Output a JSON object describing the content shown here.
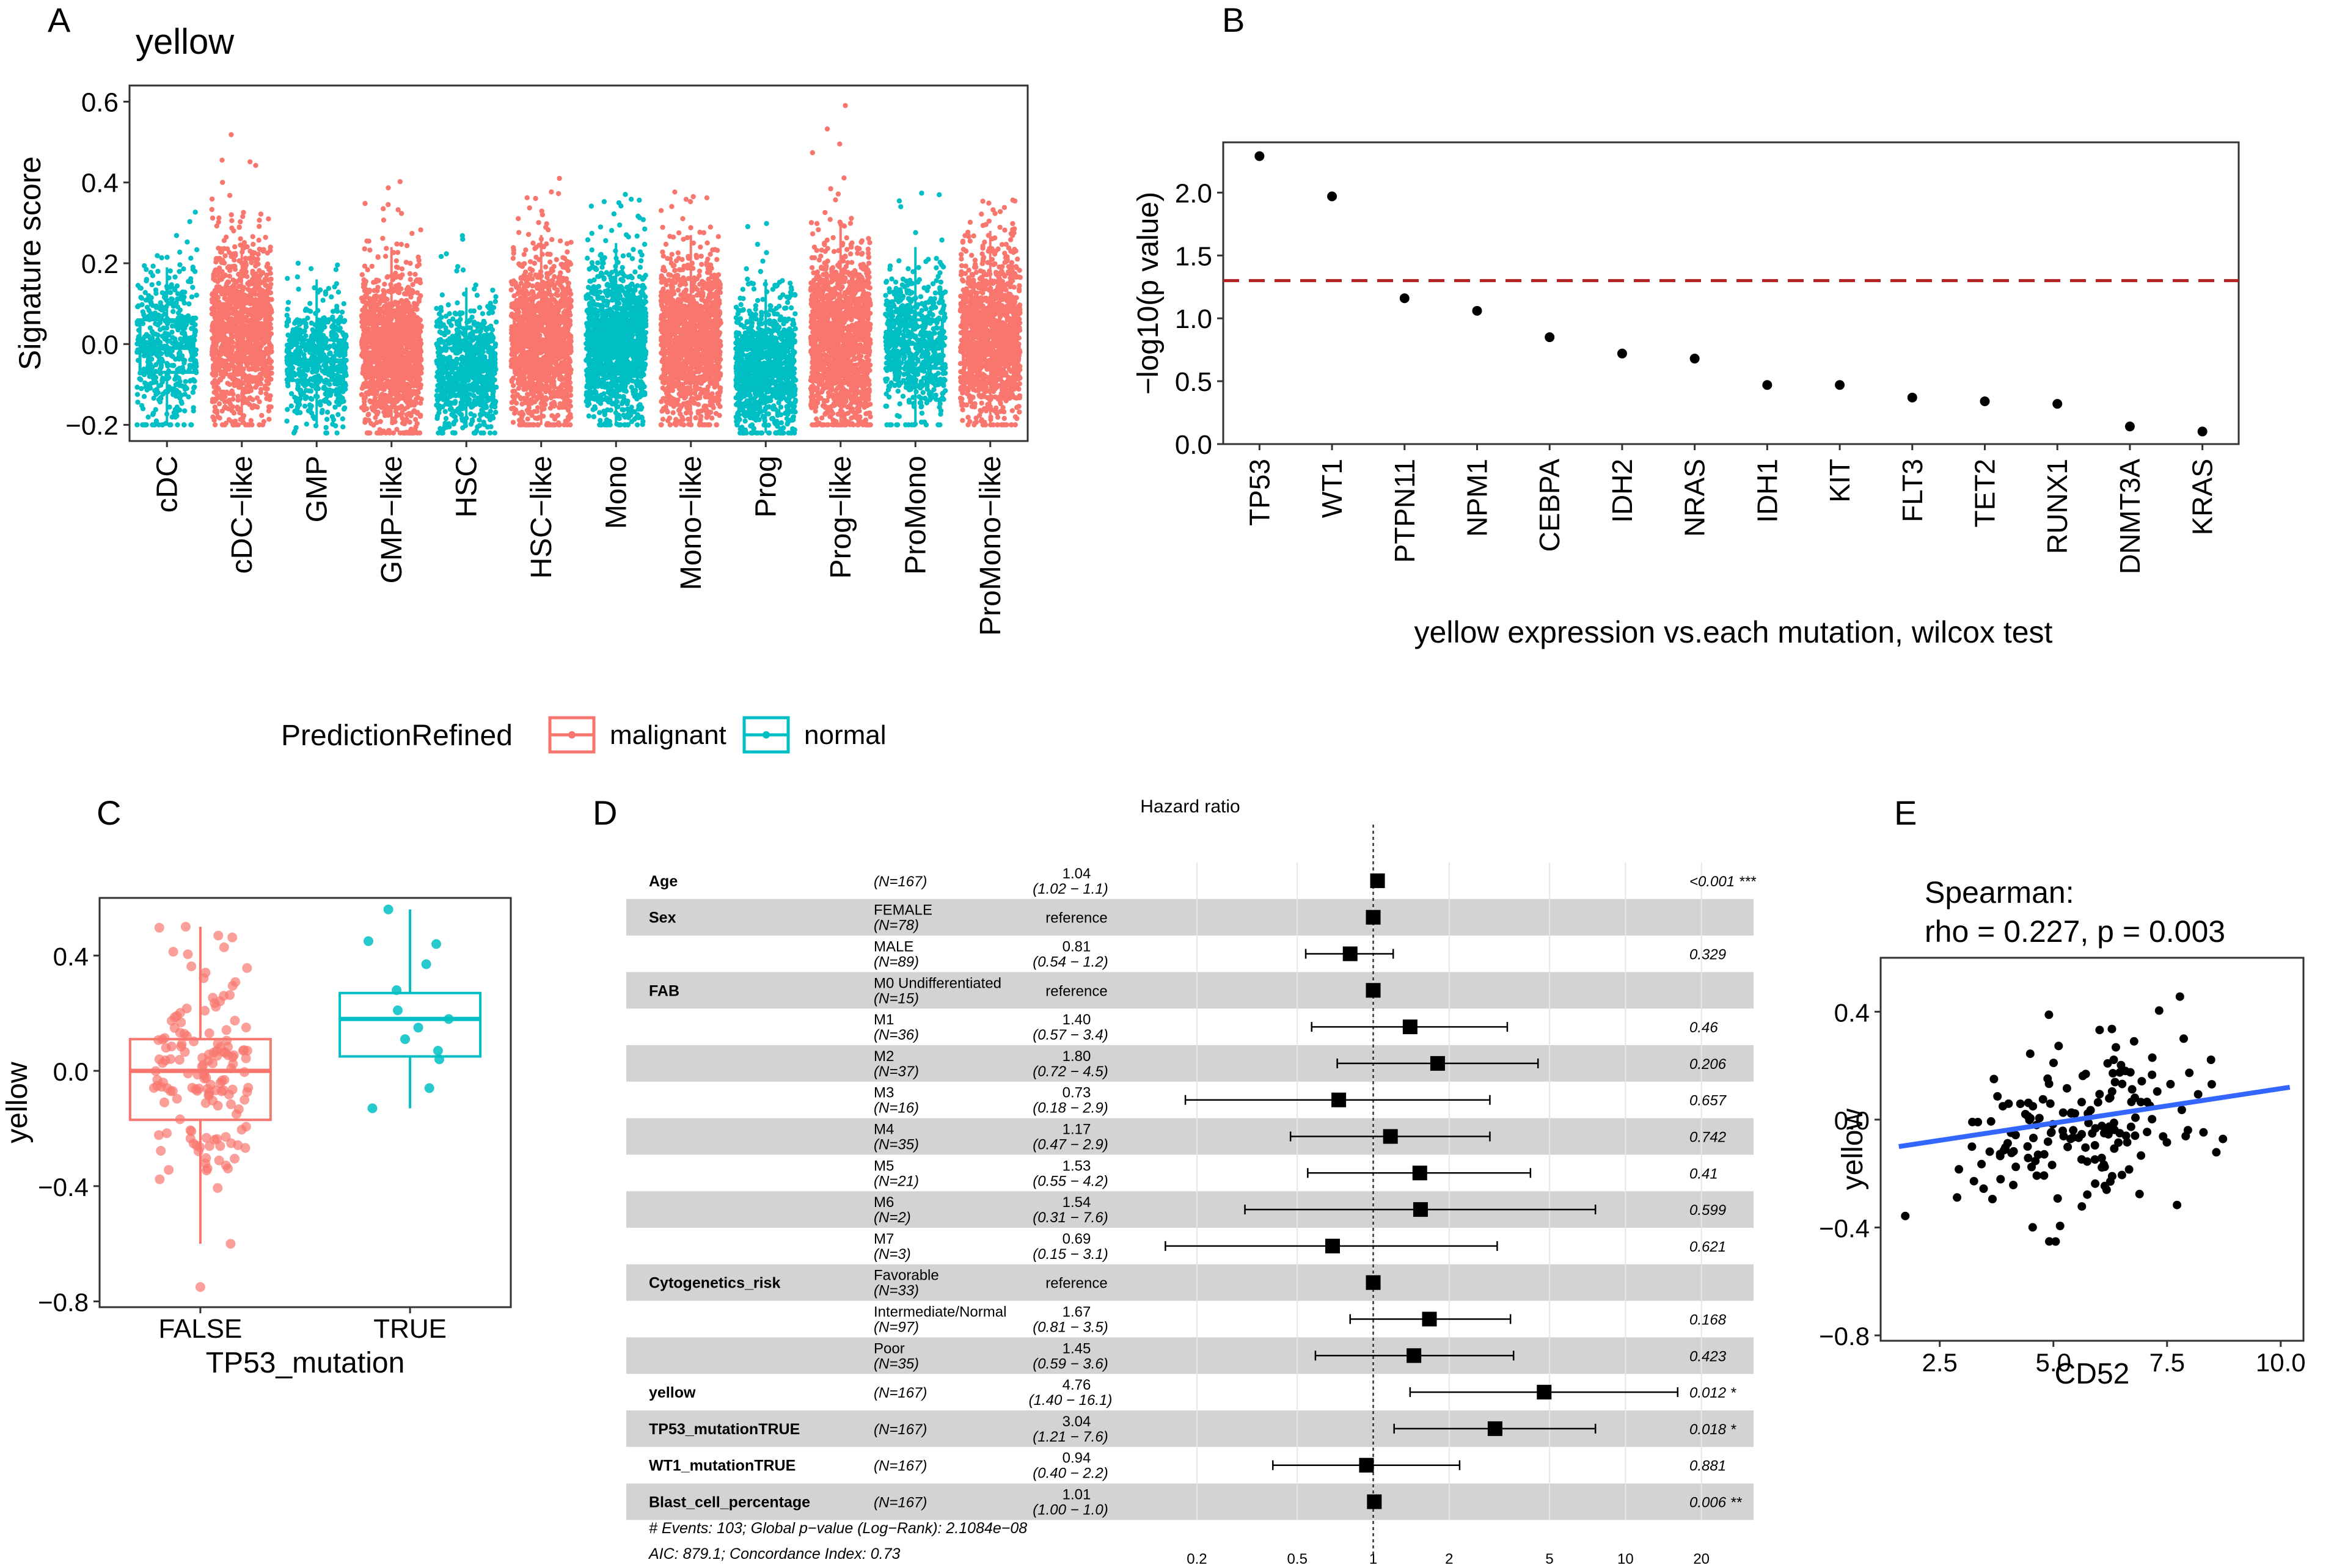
{
  "figure": {
    "colors": {
      "malignant": "#F8766D",
      "normal": "#00BFC4",
      "ref_line": "#B22222",
      "fit_line": "#3366FF",
      "stripe": "#d3d3d3"
    }
  },
  "panels": {
    "A": {
      "label": "A"
    },
    "B": {
      "label": "B"
    },
    "C": {
      "label": "C"
    },
    "D": {
      "label": "D"
    },
    "E": {
      "label": "E"
    }
  },
  "chart_data": [
    {
      "panel": "A",
      "type": "box+jitter",
      "title": "yellow",
      "ylabel": "Signature score",
      "ylim": [
        -0.24,
        0.64
      ],
      "yticks": [
        -0.2,
        0.0,
        0.2,
        0.4,
        0.6
      ],
      "ytick_labels": [
        "−0.2",
        "0.0",
        "0.2",
        "0.4",
        "0.6"
      ],
      "legend": {
        "title": "PredictionRefined",
        "items": [
          "malignant",
          "normal"
        ]
      },
      "groups": [
        {
          "name": "cDC",
          "status": "normal",
          "q1": -0.07,
          "med": -0.01,
          "q3": 0.06,
          "wlo": -0.2,
          "whi": 0.19,
          "min": -0.2,
          "max": 0.33,
          "n": 500
        },
        {
          "name": "cDC−like",
          "status": "malignant",
          "q1": -0.04,
          "med": 0.03,
          "q3": 0.1,
          "wlo": -0.2,
          "whi": 0.25,
          "min": -0.2,
          "max": 0.55,
          "n": 1200
        },
        {
          "name": "GMP",
          "status": "normal",
          "q1": -0.09,
          "med": -0.04,
          "q3": 0.01,
          "wlo": -0.2,
          "whi": 0.16,
          "min": -0.22,
          "max": 0.2,
          "n": 600
        },
        {
          "name": "GMP−like",
          "status": "malignant",
          "q1": -0.08,
          "med": -0.02,
          "q3": 0.05,
          "wlo": -0.2,
          "whi": 0.24,
          "min": -0.22,
          "max": 0.44,
          "n": 1400
        },
        {
          "name": "HSC",
          "status": "normal",
          "q1": -0.11,
          "med": -0.06,
          "q3": -0.01,
          "wlo": -0.2,
          "whi": 0.14,
          "min": -0.22,
          "max": 0.31,
          "n": 800
        },
        {
          "name": "HSC−like",
          "status": "malignant",
          "q1": -0.07,
          "med": 0.0,
          "q3": 0.07,
          "wlo": -0.2,
          "whi": 0.27,
          "min": -0.2,
          "max": 0.42,
          "n": 1400
        },
        {
          "name": "Mono",
          "status": "normal",
          "q1": -0.07,
          "med": 0.0,
          "q3": 0.06,
          "wlo": -0.2,
          "whi": 0.25,
          "min": -0.2,
          "max": 0.38,
          "n": 1300
        },
        {
          "name": "Mono−like",
          "status": "malignant",
          "q1": -0.06,
          "med": 0.01,
          "q3": 0.07,
          "wlo": -0.2,
          "whi": 0.27,
          "min": -0.2,
          "max": 0.39,
          "n": 1400
        },
        {
          "name": "Prog",
          "status": "normal",
          "q1": -0.11,
          "med": -0.06,
          "q3": 0.0,
          "wlo": -0.22,
          "whi": 0.16,
          "min": -0.22,
          "max": 0.32,
          "n": 1000
        },
        {
          "name": "Prog−like",
          "status": "malignant",
          "q1": -0.06,
          "med": 0.01,
          "q3": 0.09,
          "wlo": -0.2,
          "whi": 0.3,
          "min": -0.2,
          "max": 0.61,
          "n": 1800
        },
        {
          "name": "ProMono",
          "status": "normal",
          "q1": -0.06,
          "med": 0.0,
          "q3": 0.06,
          "wlo": -0.2,
          "whi": 0.24,
          "min": -0.2,
          "max": 0.38,
          "n": 700
        },
        {
          "name": "ProMono−like",
          "status": "malignant",
          "q1": -0.05,
          "med": 0.02,
          "q3": 0.09,
          "wlo": -0.2,
          "whi": 0.28,
          "min": -0.2,
          "max": 0.36,
          "n": 1300
        }
      ]
    },
    {
      "panel": "B",
      "type": "scatter",
      "xlabel": "yellow expression vs.each mutation, wilcox test",
      "ylabel": "−log10(p value)",
      "ylim": [
        0,
        2.4
      ],
      "yticks": [
        0.0,
        0.5,
        1.0,
        1.5,
        2.0
      ],
      "ytick_labels": [
        "0.0",
        "0.5",
        "1.0",
        "1.5",
        "2.0"
      ],
      "threshold": 1.3,
      "categories": [
        "TP53",
        "WT1",
        "PTPN11",
        "NPM1",
        "CEBPA",
        "IDH2",
        "NRAS",
        "IDH1",
        "KIT",
        "FLT3",
        "TET2",
        "RUNX1",
        "DNMT3A",
        "KRAS"
      ],
      "values": [
        2.29,
        1.97,
        1.16,
        1.06,
        0.85,
        0.72,
        0.68,
        0.47,
        0.47,
        0.37,
        0.34,
        0.32,
        0.14,
        0.1
      ]
    },
    {
      "panel": "C",
      "type": "box+jitter",
      "xlabel": "TP53_mutation",
      "ylabel": "yellow",
      "ylim": [
        -0.82,
        0.6
      ],
      "yticks": [
        -0.8,
        -0.4,
        0.0,
        0.4
      ],
      "ytick_labels": [
        "−0.8",
        "−0.4",
        "0.0",
        "0.4"
      ],
      "groups": [
        {
          "name": "FALSE",
          "q1": -0.17,
          "med": 0.0,
          "q3": 0.11,
          "wlo": -0.6,
          "whi": 0.5,
          "outliers": [
            -0.75
          ],
          "n": 150
        },
        {
          "name": "TRUE",
          "q1": 0.05,
          "med": 0.18,
          "q3": 0.27,
          "wlo": -0.13,
          "whi": 0.56,
          "points": [
            0.56,
            0.45,
            0.44,
            0.37,
            0.28,
            0.21,
            0.18,
            0.15,
            0.11,
            0.07,
            0.04,
            -0.06,
            -0.13
          ]
        }
      ]
    },
    {
      "panel": "D",
      "type": "forest",
      "title": "Hazard ratio",
      "xscale": "log",
      "xticks": [
        0.2,
        0.5,
        1,
        2,
        5,
        10,
        20
      ],
      "xtick_labels": [
        "0.2",
        "0.5",
        "1",
        "2",
        "5",
        "10",
        "20"
      ],
      "rows": [
        {
          "var": "Age",
          "level": "",
          "n": "(N=167)",
          "hr": 1.04,
          "hr_label": "1.04",
          "ci": "(1.02 − 1.1)",
          "lo": 1.02,
          "hi": 1.1,
          "p": "<0.001 ***",
          "stripe": false
        },
        {
          "var": "Sex",
          "level": "FEMALE",
          "n": "(N=78)",
          "hr": 1,
          "hr_label": "reference",
          "ci": "",
          "lo": null,
          "hi": null,
          "p": "",
          "stripe": true
        },
        {
          "var": "",
          "level": "MALE",
          "n": "(N=89)",
          "hr": 0.81,
          "hr_label": "0.81",
          "ci": "(0.54 − 1.2)",
          "lo": 0.54,
          "hi": 1.2,
          "p": "0.329",
          "stripe": false
        },
        {
          "var": "FAB",
          "level": "M0 Undifferentiated",
          "n": "(N=15)",
          "hr": 1,
          "hr_label": "reference",
          "ci": "",
          "lo": null,
          "hi": null,
          "p": "",
          "stripe": true
        },
        {
          "var": "",
          "level": "M1",
          "n": "(N=36)",
          "hr": 1.4,
          "hr_label": "1.40",
          "ci": "(0.57 − 3.4)",
          "lo": 0.57,
          "hi": 3.4,
          "p": "0.46",
          "stripe": false
        },
        {
          "var": "",
          "level": "M2",
          "n": "(N=37)",
          "hr": 1.8,
          "hr_label": "1.80",
          "ci": "(0.72 − 4.5)",
          "lo": 0.72,
          "hi": 4.5,
          "p": "0.206",
          "stripe": true
        },
        {
          "var": "",
          "level": "M3",
          "n": "(N=16)",
          "hr": 0.73,
          "hr_label": "0.73",
          "ci": "(0.18 − 2.9)",
          "lo": 0.18,
          "hi": 2.9,
          "p": "0.657",
          "stripe": false
        },
        {
          "var": "",
          "level": "M4",
          "n": "(N=35)",
          "hr": 1.17,
          "hr_label": "1.17",
          "ci": "(0.47 − 2.9)",
          "lo": 0.47,
          "hi": 2.9,
          "p": "0.742",
          "stripe": true
        },
        {
          "var": "",
          "level": "M5",
          "n": "(N=21)",
          "hr": 1.53,
          "hr_label": "1.53",
          "ci": "(0.55 − 4.2)",
          "lo": 0.55,
          "hi": 4.2,
          "p": "0.41",
          "stripe": false
        },
        {
          "var": "",
          "level": "M6",
          "n": "(N=2)",
          "hr": 1.54,
          "hr_label": "1.54",
          "ci": "(0.31 − 7.6)",
          "lo": 0.31,
          "hi": 7.6,
          "p": "0.599",
          "stripe": true
        },
        {
          "var": "",
          "level": "M7",
          "n": "(N=3)",
          "hr": 0.69,
          "hr_label": "0.69",
          "ci": "(0.15 − 3.1)",
          "lo": 0.15,
          "hi": 3.1,
          "p": "0.621",
          "stripe": false
        },
        {
          "var": "Cytogenetics_risk",
          "level": "Favorable",
          "n": "(N=33)",
          "hr": 1,
          "hr_label": "reference",
          "ci": "",
          "lo": null,
          "hi": null,
          "p": "",
          "stripe": true
        },
        {
          "var": "",
          "level": "Intermediate/Normal",
          "n": "(N=97)",
          "hr": 1.67,
          "hr_label": "1.67",
          "ci": "(0.81 − 3.5)",
          "lo": 0.81,
          "hi": 3.5,
          "p": "0.168",
          "stripe": false
        },
        {
          "var": "",
          "level": "Poor",
          "n": "(N=35)",
          "hr": 1.45,
          "hr_label": "1.45",
          "ci": "(0.59 − 3.6)",
          "lo": 0.59,
          "hi": 3.6,
          "p": "0.423",
          "stripe": true
        },
        {
          "var": "yellow",
          "level": "",
          "n": "(N=167)",
          "hr": 4.76,
          "hr_label": "4.76",
          "ci": "(1.40 − 16.1)",
          "lo": 1.4,
          "hi": 16.1,
          "p": "0.012 *",
          "stripe": false
        },
        {
          "var": "TP53_mutationTRUE",
          "level": "",
          "n": "(N=167)",
          "hr": 3.04,
          "hr_label": "3.04",
          "ci": "(1.21 − 7.6)",
          "lo": 1.21,
          "hi": 7.6,
          "p": "0.018 *",
          "stripe": true
        },
        {
          "var": "WT1_mutationTRUE",
          "level": "",
          "n": "(N=167)",
          "hr": 0.94,
          "hr_label": "0.94",
          "ci": "(0.40 − 2.2)",
          "lo": 0.4,
          "hi": 2.2,
          "p": "0.881",
          "stripe": false
        },
        {
          "var": "Blast_cell_percentage",
          "level": "",
          "n": "(N=167)",
          "hr": 1.01,
          "hr_label": "1.01",
          "ci": "(1.00 − 1.0)",
          "lo": 1.0,
          "hi": 1.0,
          "p": "0.006 **",
          "stripe": true
        }
      ],
      "footer": [
        "# Events: 103; Global p−value (Log−Rank): 2.1084e−08",
        "AIC: 879.1; Concordance Index: 0.73"
      ]
    },
    {
      "panel": "E",
      "type": "scatter",
      "xlabel": "CD52",
      "ylabel": "yellow",
      "annotation": [
        "Spearman:",
        "rho = 0.227, p = 0.003"
      ],
      "xlim": [
        1.2,
        10.5
      ],
      "ylim": [
        -0.82,
        0.6
      ],
      "xticks": [
        2.5,
        5.0,
        7.5,
        10.0
      ],
      "xtick_labels": [
        "2.5",
        "5.0",
        "7.5",
        "10.0"
      ],
      "yticks": [
        -0.8,
        -0.4,
        0.0,
        0.4
      ],
      "ytick_labels": [
        "−0.8",
        "−0.4",
        "0.0",
        "0.4"
      ],
      "fit": {
        "x0": 1.6,
        "y0": -0.1,
        "x1": 10.2,
        "y1": 0.12
      },
      "n_points": 167
    }
  ]
}
